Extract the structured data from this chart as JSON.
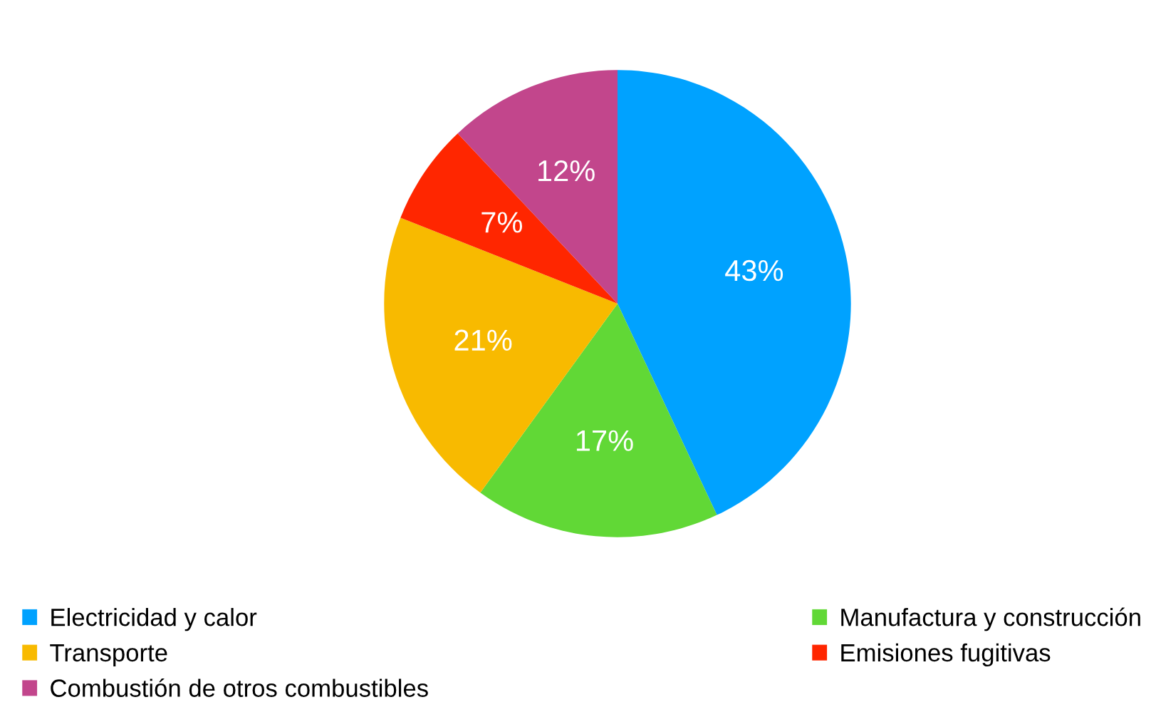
{
  "chart_data": {
    "type": "pie",
    "categories": [
      "Electricidad y calor",
      "Manufactura y construcción",
      "Transporte",
      "Emisiones fugitivas",
      "Combustión de otros combustibles"
    ],
    "values": [
      43,
      17,
      21,
      7,
      12
    ],
    "colors": [
      "#00a2ff",
      "#61d836",
      "#f8ba00",
      "#ff2600",
      "#c2468c"
    ],
    "value_labels": [
      "43%",
      "17%",
      "21%",
      "7%",
      "12%"
    ],
    "legend": "bottom"
  }
}
